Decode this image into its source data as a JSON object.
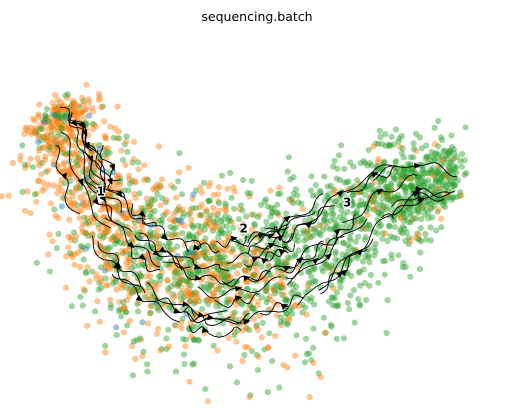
{
  "chart_data": {
    "type": "scatter",
    "title": "sequencing.batch",
    "xlabel": "",
    "ylabel": "",
    "axes_visible": false,
    "grid": false,
    "legend": "none",
    "overlay": "RNA velocity streamlines with arrowheads",
    "point_colors": {
      "batch_a": "#2ca02c",
      "batch_b": "#ff7f0e",
      "batch_c": "#1f77b4"
    },
    "cluster_labels": [
      {
        "label": "1",
        "x": 0.18,
        "y": 0.55
      },
      {
        "label": "2",
        "x": 0.47,
        "y": 0.45
      },
      {
        "label": "3",
        "x": 0.68,
        "y": 0.52
      }
    ],
    "x": [
      0.08,
      0.12,
      0.16,
      0.22,
      0.28,
      0.35,
      0.42,
      0.5,
      0.58,
      0.66,
      0.74,
      0.82,
      0.9
    ],
    "y": [
      0.78,
      0.7,
      0.55,
      0.45,
      0.38,
      0.32,
      0.3,
      0.32,
      0.36,
      0.45,
      0.55,
      0.6,
      0.58
    ]
  }
}
